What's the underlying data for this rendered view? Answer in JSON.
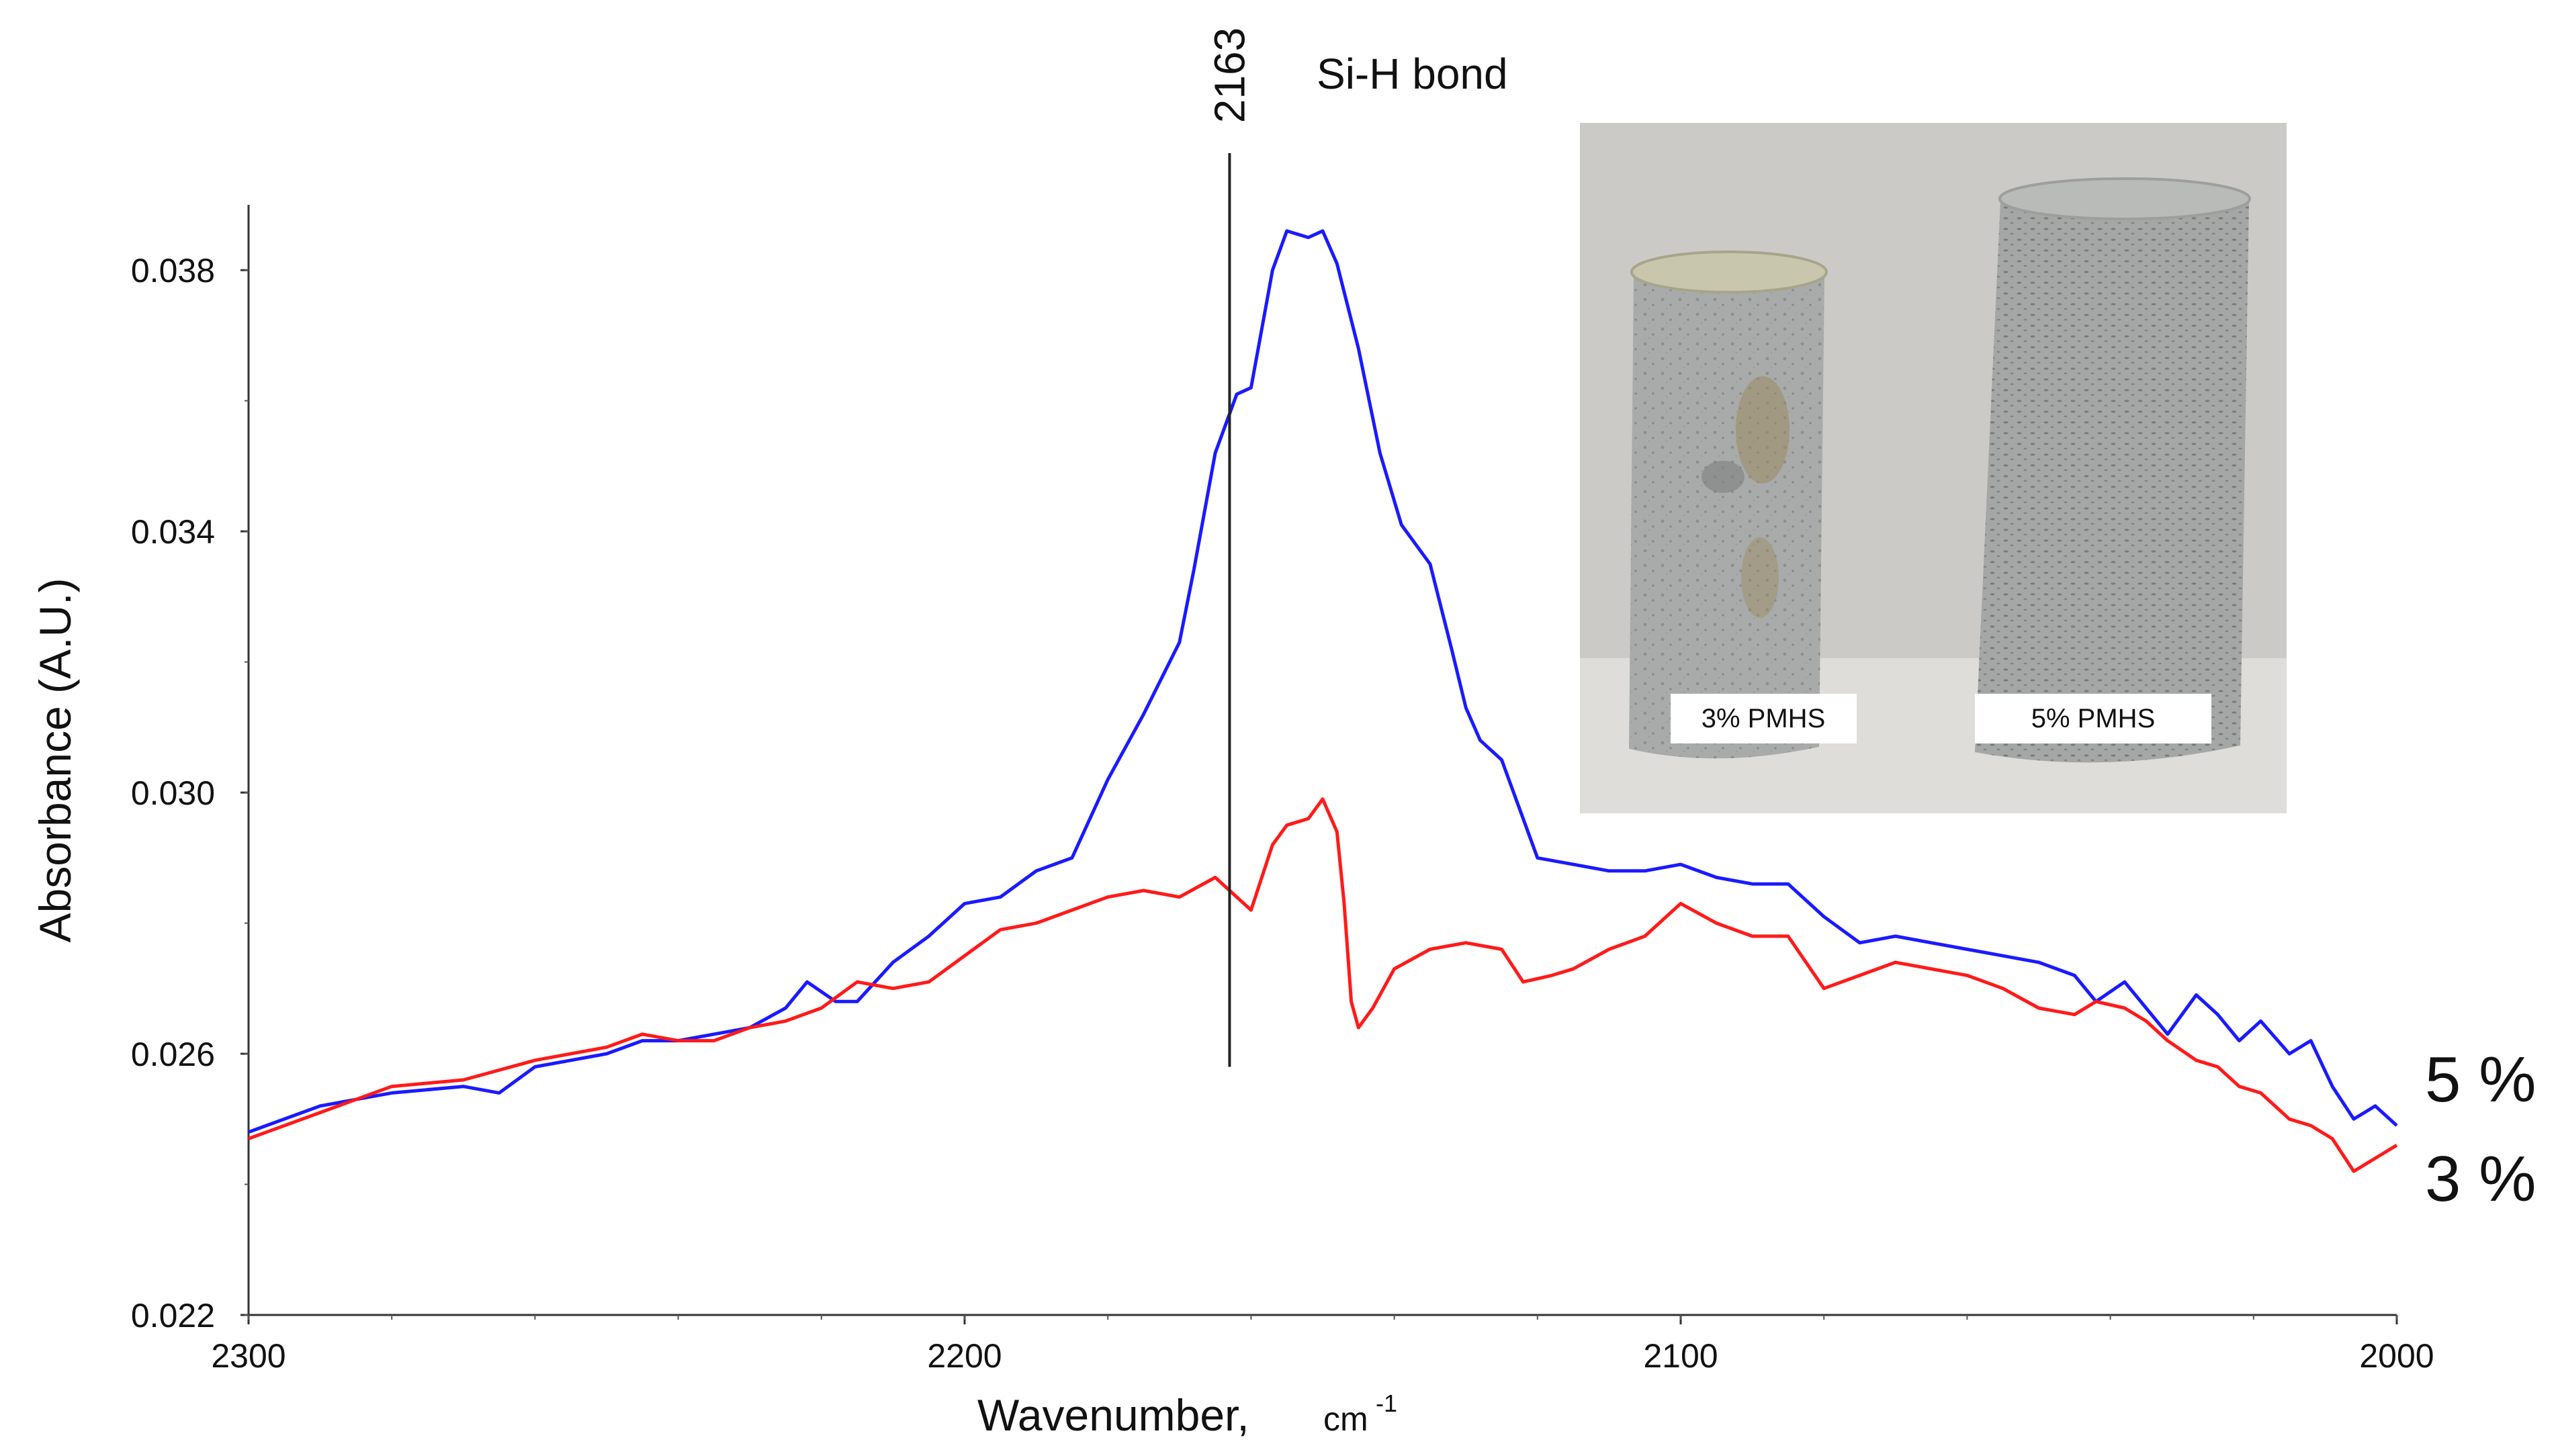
{
  "chart_data": {
    "type": "line",
    "xlabel": "Wavenumber,",
    "xlabel_unit": "cm",
    "xlabel_unit_exp": "-1",
    "ylabel": "Absorbance (A.U.)",
    "xlim": [
      2300,
      2000
    ],
    "ylim": [
      0.022,
      0.039
    ],
    "x_ticks": [
      2300,
      2200,
      2100,
      2000
    ],
    "x_tick_labels": [
      "2300",
      "2200",
      "2100",
      "2000"
    ],
    "y_ticks": [
      0.022,
      0.026,
      0.03,
      0.034,
      0.038
    ],
    "y_tick_labels": [
      "0.022",
      "0.026",
      "0.030",
      "0.034",
      "0.038"
    ],
    "reference_line": {
      "x": 2163,
      "label": "2163",
      "annotation": "Si-H bond"
    },
    "series": [
      {
        "name": "5 %",
        "color": "#1a1aff",
        "points": [
          [
            2300,
            0.0248
          ],
          [
            2290,
            0.0252
          ],
          [
            2280,
            0.0254
          ],
          [
            2270,
            0.0255
          ],
          [
            2265,
            0.0254
          ],
          [
            2260,
            0.0258
          ],
          [
            2255,
            0.0259
          ],
          [
            2250,
            0.026
          ],
          [
            2245,
            0.0262
          ],
          [
            2240,
            0.0262
          ],
          [
            2235,
            0.0263
          ],
          [
            2230,
            0.0264
          ],
          [
            2225,
            0.0267
          ],
          [
            2222,
            0.0271
          ],
          [
            2218,
            0.0268
          ],
          [
            2215,
            0.0268
          ],
          [
            2210,
            0.0274
          ],
          [
            2205,
            0.0278
          ],
          [
            2200,
            0.0283
          ],
          [
            2195,
            0.0284
          ],
          [
            2190,
            0.0288
          ],
          [
            2185,
            0.029
          ],
          [
            2180,
            0.0302
          ],
          [
            2175,
            0.0312
          ],
          [
            2170,
            0.0323
          ],
          [
            2168,
            0.0334
          ],
          [
            2165,
            0.0352
          ],
          [
            2162,
            0.0361
          ],
          [
            2160,
            0.0362
          ],
          [
            2157,
            0.038
          ],
          [
            2155,
            0.0386
          ],
          [
            2152,
            0.0385
          ],
          [
            2150,
            0.0386
          ],
          [
            2148,
            0.0381
          ],
          [
            2145,
            0.0368
          ],
          [
            2142,
            0.0352
          ],
          [
            2139,
            0.0341
          ],
          [
            2135,
            0.0335
          ],
          [
            2132,
            0.0322
          ],
          [
            2130,
            0.0313
          ],
          [
            2128,
            0.0308
          ],
          [
            2125,
            0.0305
          ],
          [
            2122,
            0.0296
          ],
          [
            2120,
            0.029
          ],
          [
            2115,
            0.0289
          ],
          [
            2110,
            0.0288
          ],
          [
            2105,
            0.0288
          ],
          [
            2100,
            0.0289
          ],
          [
            2095,
            0.0287
          ],
          [
            2090,
            0.0286
          ],
          [
            2085,
            0.0286
          ],
          [
            2080,
            0.0281
          ],
          [
            2075,
            0.0277
          ],
          [
            2070,
            0.0278
          ],
          [
            2065,
            0.0277
          ],
          [
            2060,
            0.0276
          ],
          [
            2055,
            0.0275
          ],
          [
            2050,
            0.0274
          ],
          [
            2045,
            0.0272
          ],
          [
            2042,
            0.0268
          ],
          [
            2038,
            0.0271
          ],
          [
            2035,
            0.0267
          ],
          [
            2032,
            0.0263
          ],
          [
            2028,
            0.0269
          ],
          [
            2025,
            0.0266
          ],
          [
            2022,
            0.0262
          ],
          [
            2019,
            0.0265
          ],
          [
            2015,
            0.026
          ],
          [
            2012,
            0.0262
          ],
          [
            2009,
            0.0255
          ],
          [
            2006,
            0.025
          ],
          [
            2003,
            0.0252
          ],
          [
            2000,
            0.0249
          ]
        ]
      },
      {
        "name": "3 %",
        "color": "#ff1a1a",
        "points": [
          [
            2300,
            0.0247
          ],
          [
            2290,
            0.0251
          ],
          [
            2280,
            0.0255
          ],
          [
            2270,
            0.0256
          ],
          [
            2260,
            0.0259
          ],
          [
            2250,
            0.0261
          ],
          [
            2245,
            0.0263
          ],
          [
            2240,
            0.0262
          ],
          [
            2235,
            0.0262
          ],
          [
            2230,
            0.0264
          ],
          [
            2225,
            0.0265
          ],
          [
            2220,
            0.0267
          ],
          [
            2215,
            0.0271
          ],
          [
            2210,
            0.027
          ],
          [
            2205,
            0.0271
          ],
          [
            2200,
            0.0275
          ],
          [
            2195,
            0.0279
          ],
          [
            2190,
            0.028
          ],
          [
            2185,
            0.0282
          ],
          [
            2180,
            0.0284
          ],
          [
            2175,
            0.0285
          ],
          [
            2170,
            0.0284
          ],
          [
            2165,
            0.0287
          ],
          [
            2160,
            0.0282
          ],
          [
            2157,
            0.0292
          ],
          [
            2155,
            0.0295
          ],
          [
            2152,
            0.0296
          ],
          [
            2150,
            0.0299
          ],
          [
            2148,
            0.0294
          ],
          [
            2147,
            0.0283
          ],
          [
            2146,
            0.0268
          ],
          [
            2145,
            0.0264
          ],
          [
            2143,
            0.0267
          ],
          [
            2140,
            0.0273
          ],
          [
            2135,
            0.0276
          ],
          [
            2130,
            0.0277
          ],
          [
            2125,
            0.0276
          ],
          [
            2122,
            0.0271
          ],
          [
            2118,
            0.0272
          ],
          [
            2115,
            0.0273
          ],
          [
            2110,
            0.0276
          ],
          [
            2105,
            0.0278
          ],
          [
            2100,
            0.0283
          ],
          [
            2095,
            0.028
          ],
          [
            2090,
            0.0278
          ],
          [
            2085,
            0.0278
          ],
          [
            2080,
            0.027
          ],
          [
            2075,
            0.0272
          ],
          [
            2070,
            0.0274
          ],
          [
            2065,
            0.0273
          ],
          [
            2060,
            0.0272
          ],
          [
            2055,
            0.027
          ],
          [
            2050,
            0.0267
          ],
          [
            2045,
            0.0266
          ],
          [
            2042,
            0.0268
          ],
          [
            2038,
            0.0267
          ],
          [
            2035,
            0.0265
          ],
          [
            2032,
            0.0262
          ],
          [
            2028,
            0.0259
          ],
          [
            2025,
            0.0258
          ],
          [
            2022,
            0.0255
          ],
          [
            2019,
            0.0254
          ],
          [
            2015,
            0.025
          ],
          [
            2012,
            0.0249
          ],
          [
            2009,
            0.0247
          ],
          [
            2006,
            0.0242
          ],
          [
            2003,
            0.0244
          ],
          [
            2000,
            0.0246
          ]
        ]
      }
    ]
  },
  "inset_photo": {
    "labels": [
      "3% PMHS",
      "5% PMHS"
    ]
  }
}
